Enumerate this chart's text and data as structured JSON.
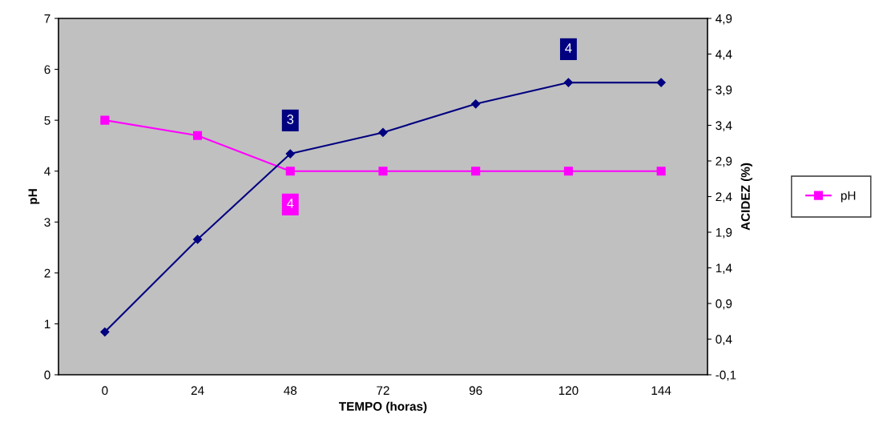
{
  "chart_data": {
    "type": "line",
    "xlabel": "TEMPO (horas)",
    "ylabel": "pH",
    "y2label": "ACIDEZ (%)",
    "categories": [
      "0",
      "24",
      "48",
      "72",
      "96",
      "120",
      "144"
    ],
    "series": [
      {
        "name": "pH",
        "color": "#ff00ff",
        "marker": "square",
        "values": [
          5,
          4.7,
          4,
          4,
          4,
          4,
          4
        ],
        "value_labels": [
          null,
          null,
          "4",
          null,
          null,
          null,
          null
        ]
      },
      {
        "color": "#000080",
        "marker": "diamond",
        "axis": "y2",
        "values": [
          0.5,
          1.8,
          3.0,
          3.3,
          3.7,
          4.0,
          4.0
        ],
        "value_labels": [
          null,
          null,
          "3",
          null,
          null,
          "4",
          null
        ]
      }
    ],
    "ylim": [
      0,
      7
    ],
    "yticks": [
      0,
      1,
      2,
      3,
      4,
      5,
      6,
      7
    ],
    "y2lim": [
      -0.1,
      4.9
    ],
    "y2ticks": [
      {
        "value": -0.1,
        "label": "-0,1"
      },
      {
        "value": 0.4,
        "label": "0,4"
      },
      {
        "value": 0.9,
        "label": "0,9"
      },
      {
        "value": 1.4,
        "label": "1,4"
      },
      {
        "value": 1.9,
        "label": "1,9"
      },
      {
        "value": 2.4,
        "label": "2,4"
      },
      {
        "value": 2.9,
        "label": "2,9"
      },
      {
        "value": 3.4,
        "label": "3,4"
      },
      {
        "value": 3.9,
        "label": "3,9"
      },
      {
        "value": 4.4,
        "label": "4,4"
      },
      {
        "value": 4.9,
        "label": "4,9"
      }
    ],
    "grid": false,
    "legend": "right",
    "line_style": "solid"
  }
}
